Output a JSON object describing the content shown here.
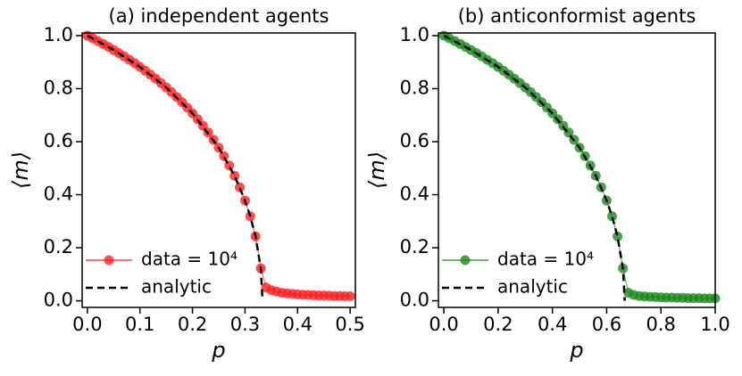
{
  "chart_data": [
    {
      "type": "line",
      "title": "(a) independent agents",
      "xlabel": "p",
      "ylabel": "⟨m⟩",
      "xlim": [
        -0.01,
        0.51
      ],
      "ylim": [
        -0.025,
        1.01
      ],
      "xticks": [
        {
          "value": 0,
          "label": "0.0"
        },
        {
          "value": 0.1,
          "label": "0.1"
        },
        {
          "value": 0.2,
          "label": "0.2"
        },
        {
          "value": 0.3,
          "label": "0.3"
        },
        {
          "value": 0.4,
          "label": "0.4"
        },
        {
          "value": 0.5,
          "label": "0.5"
        }
      ],
      "yticks": [
        {
          "value": 0,
          "label": "0.0"
        },
        {
          "value": 0.2,
          "label": "0.2"
        },
        {
          "value": 0.4,
          "label": "0.4"
        },
        {
          "value": 0.6,
          "label": "0.6"
        },
        {
          "value": 0.8,
          "label": "0.8"
        },
        {
          "value": 1.0,
          "label": "1.0"
        }
      ],
      "legend": "lower left",
      "series": [
        {
          "name": "data = 10⁴",
          "color": "#ff2020",
          "marker": true,
          "x": [
            0,
            0.01,
            0.02,
            0.03,
            0.04,
            0.05,
            0.06,
            0.07,
            0.08,
            0.09,
            0.1,
            0.11,
            0.12,
            0.13,
            0.14,
            0.15,
            0.16,
            0.17,
            0.18,
            0.19,
            0.2,
            0.21,
            0.22,
            0.23,
            0.24,
            0.25,
            0.26,
            0.27,
            0.28,
            0.29,
            0.3,
            0.31,
            0.32,
            0.33,
            0.34,
            0.35,
            0.36,
            0.37,
            0.38,
            0.39,
            0.4,
            0.41,
            0.42,
            0.43,
            0.44,
            0.45,
            0.46,
            0.47,
            0.48,
            0.49,
            0.5
          ],
          "values": [
            1,
            0.9899,
            0.9794,
            0.9686,
            0.9574,
            0.9459,
            0.934,
            0.9217,
            0.9089,
            0.8957,
            0.8819,
            0.8676,
            0.8528,
            0.8373,
            0.8212,
            0.8044,
            0.7868,
            0.7684,
            0.749,
            0.7286,
            0.7071,
            0.6844,
            0.6602,
            0.6345,
            0.607,
            0.5774,
            0.5453,
            0.5102,
            0.4714,
            0.428,
            0.378,
            0.3185,
            0.2425,
            0.1222,
            0.05,
            0.04,
            0.035,
            0.03,
            0.028,
            0.026,
            0.024,
            0.023,
            0.022,
            0.021,
            0.02,
            0.02,
            0.019,
            0.018,
            0.018,
            0.017,
            0.017
          ]
        },
        {
          "name": "analytic",
          "color": "#000000",
          "dashed": true,
          "x": [
            0,
            0.05,
            0.1,
            0.15,
            0.2,
            0.25,
            0.28,
            0.3,
            0.31,
            0.32,
            0.33,
            0.3333
          ],
          "values": [
            1,
            0.9459,
            0.8819,
            0.8044,
            0.7071,
            0.5774,
            0.4714,
            0.378,
            0.3185,
            0.2425,
            0.1222,
            0
          ]
        }
      ]
    },
    {
      "type": "line",
      "title": "(b) anticonformist agents",
      "xlabel": "p",
      "ylabel": "⟨m⟩",
      "xlim": [
        -0.02,
        1.0
      ],
      "ylim": [
        -0.025,
        1.01
      ],
      "xticks": [
        {
          "value": 0,
          "label": "0.0"
        },
        {
          "value": 0.2,
          "label": "0.2"
        },
        {
          "value": 0.4,
          "label": "0.4"
        },
        {
          "value": 0.6,
          "label": "0.6"
        },
        {
          "value": 0.8,
          "label": "0.8"
        },
        {
          "value": 1.0,
          "label": "1.0"
        }
      ],
      "yticks": [
        {
          "value": 0,
          "label": "0.0"
        },
        {
          "value": 0.2,
          "label": "0.2"
        },
        {
          "value": 0.4,
          "label": "0.4"
        },
        {
          "value": 0.6,
          "label": "0.6"
        },
        {
          "value": 0.8,
          "label": "0.8"
        },
        {
          "value": 1.0,
          "label": "1.0"
        }
      ],
      "legend": "lower left",
      "series": [
        {
          "name": "data = 10⁴",
          "color": "#1a8a1a",
          "marker": true,
          "x": [
            0,
            0.02,
            0.04,
            0.06,
            0.08,
            0.1,
            0.12,
            0.14,
            0.16,
            0.18,
            0.2,
            0.22,
            0.24,
            0.26,
            0.28,
            0.3,
            0.32,
            0.34,
            0.36,
            0.38,
            0.4,
            0.42,
            0.44,
            0.46,
            0.48,
            0.5,
            0.52,
            0.54,
            0.56,
            0.58,
            0.6,
            0.62,
            0.64,
            0.66,
            0.68,
            0.7,
            0.72,
            0.74,
            0.76,
            0.78,
            0.8,
            0.82,
            0.84,
            0.86,
            0.88,
            0.9,
            0.92,
            0.94,
            0.96,
            0.98,
            1.0
          ],
          "values": [
            1,
            0.9899,
            0.9794,
            0.9686,
            0.9574,
            0.9459,
            0.934,
            0.9217,
            0.9089,
            0.8957,
            0.8819,
            0.8676,
            0.8528,
            0.8373,
            0.8212,
            0.8044,
            0.7868,
            0.7684,
            0.749,
            0.7286,
            0.7071,
            0.6844,
            0.6602,
            0.6345,
            0.607,
            0.5774,
            0.5453,
            0.5102,
            0.4714,
            0.428,
            0.378,
            0.3185,
            0.2425,
            0.1222,
            0.03,
            0.022,
            0.018,
            0.016,
            0.015,
            0.014,
            0.013,
            0.012,
            0.012,
            0.011,
            0.011,
            0.01,
            0.01,
            0.01,
            0.009,
            0.009,
            0.009
          ]
        },
        {
          "name": "analytic",
          "color": "#000000",
          "dashed": true,
          "x": [
            0,
            0.1,
            0.2,
            0.3,
            0.4,
            0.5,
            0.56,
            0.6,
            0.62,
            0.64,
            0.66,
            0.6667
          ],
          "values": [
            1,
            0.9459,
            0.8819,
            0.8044,
            0.7071,
            0.5774,
            0.4714,
            0.378,
            0.3185,
            0.2425,
            0.1222,
            0
          ]
        }
      ]
    }
  ]
}
